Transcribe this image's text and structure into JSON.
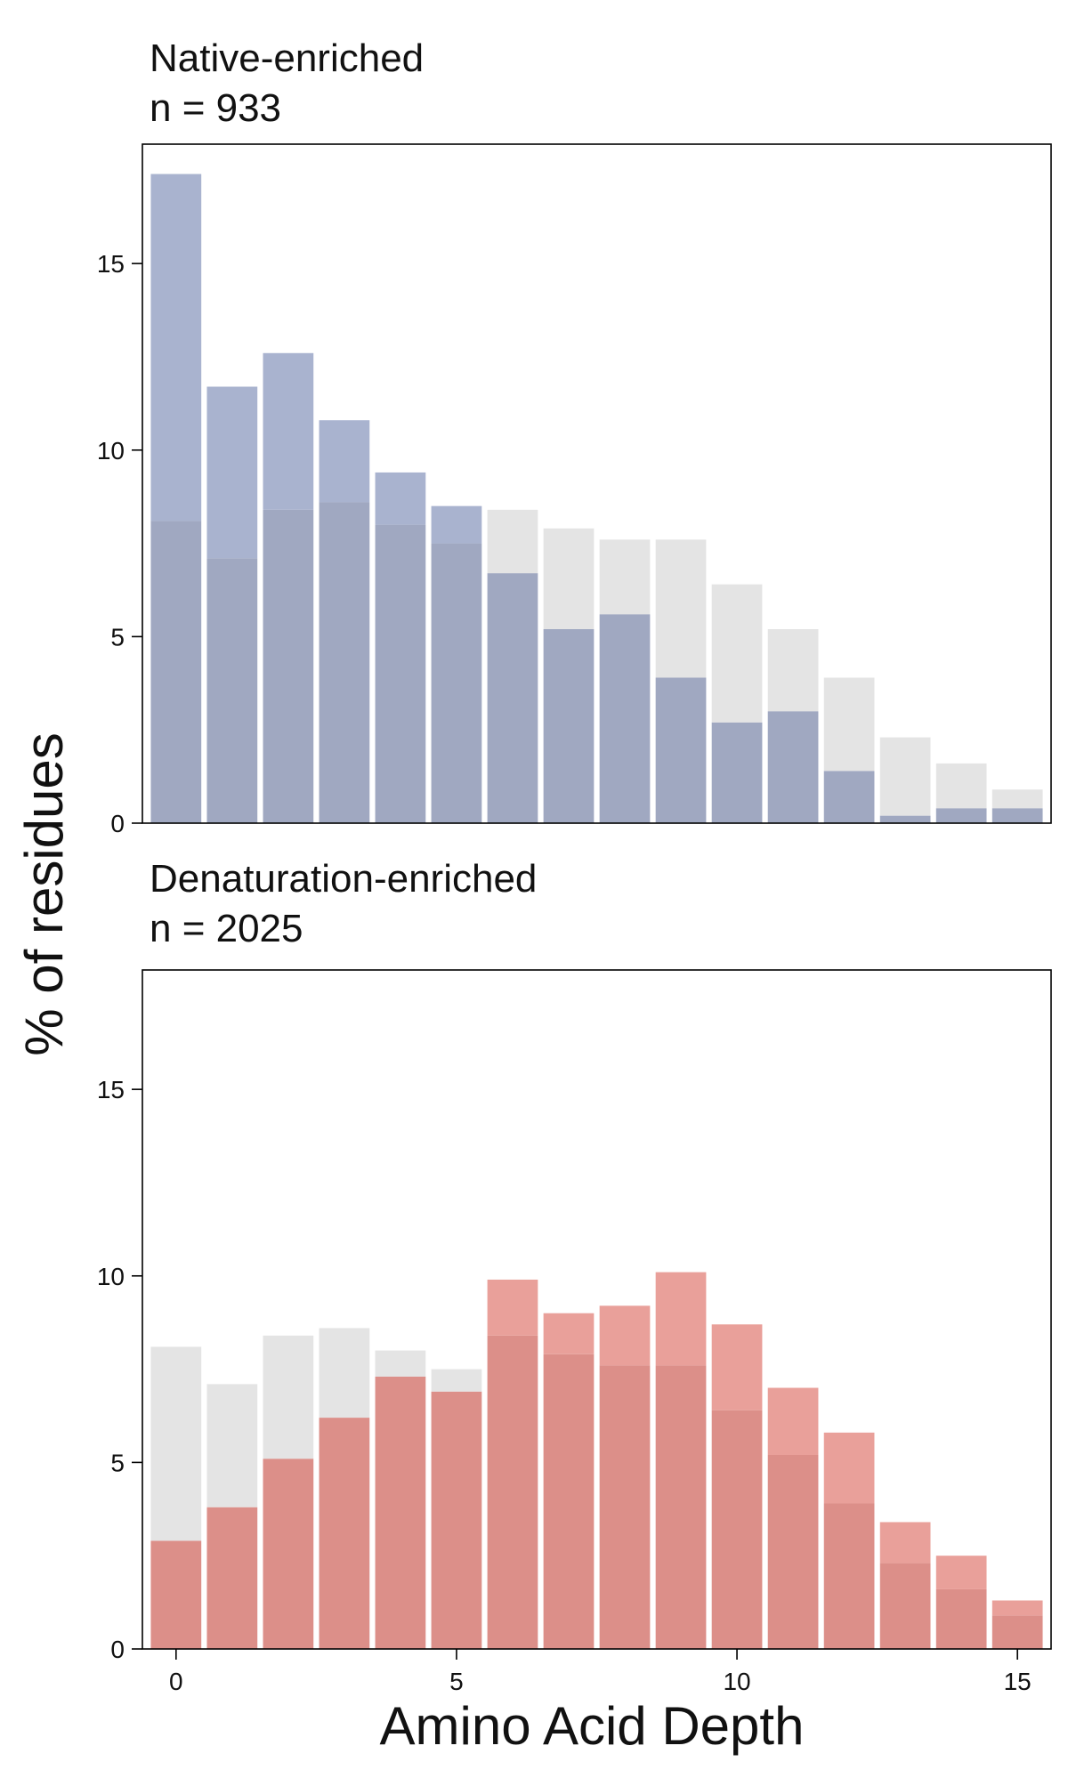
{
  "figure": {
    "ylabel": "% of residues",
    "xlabel": "Amino Acid Depth"
  },
  "chart_data": [
    {
      "type": "bar",
      "title_line1": "Native-enriched",
      "title_line2": "n = 933",
      "x": [
        0,
        1,
        2,
        3,
        4,
        5,
        6,
        7,
        8,
        9,
        10,
        11,
        12,
        13,
        14,
        15
      ],
      "series": [
        {
          "name": "",
          "role": "background",
          "color": "#e4e4e4",
          "values": [
            8.1,
            7.1,
            8.4,
            8.6,
            8.0,
            7.5,
            8.4,
            7.9,
            7.6,
            7.6,
            6.4,
            5.2,
            3.9,
            2.3,
            1.6,
            0.9
          ]
        },
        {
          "name": "",
          "role": "foreground",
          "color": "#a9b3cf",
          "values": [
            17.4,
            11.7,
            12.6,
            10.8,
            9.4,
            8.5,
            6.7,
            5.2,
            5.6,
            3.9,
            2.7,
            3.0,
            1.4,
            0.2,
            0.4,
            0.4
          ]
        }
      ],
      "overlap_color": "#a0a8c1",
      "xlim": [
        -0.6,
        15.6
      ],
      "ylim": [
        0,
        18.2
      ],
      "yticks": [
        0,
        5,
        10,
        15
      ],
      "xticks": [],
      "grid": false
    },
    {
      "type": "bar",
      "title_line1": "Denaturation-enriched",
      "title_line2": "n = 2025",
      "x": [
        0,
        1,
        2,
        3,
        4,
        5,
        6,
        7,
        8,
        9,
        10,
        11,
        12,
        13,
        14,
        15
      ],
      "series": [
        {
          "name": "",
          "role": "background",
          "color": "#e4e4e4",
          "values": [
            8.1,
            7.1,
            8.4,
            8.6,
            8.0,
            7.5,
            8.4,
            7.9,
            7.6,
            7.6,
            6.4,
            5.2,
            3.9,
            2.3,
            1.6,
            0.9
          ]
        },
        {
          "name": "",
          "role": "foreground",
          "color": "#e9a09a",
          "values": [
            2.9,
            3.8,
            5.1,
            6.2,
            7.3,
            6.9,
            9.9,
            9.0,
            9.2,
            10.1,
            8.7,
            7.0,
            5.8,
            3.4,
            2.5,
            1.3
          ]
        }
      ],
      "overlap_color": "#dc8f89",
      "xlim": [
        -0.6,
        15.6
      ],
      "ylim": [
        0,
        18.2
      ],
      "yticks": [
        0,
        5,
        10,
        15
      ],
      "xticks": [
        0,
        5,
        10,
        15
      ],
      "grid": false
    }
  ]
}
